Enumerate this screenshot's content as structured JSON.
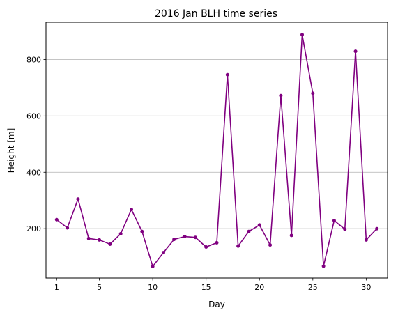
{
  "chart_data": {
    "type": "line",
    "title": "2016 Jan BLH time series",
    "xlabel": "Day",
    "ylabel": "Height [m]",
    "xlim": [
      0,
      32
    ],
    "ylim": [
      25,
      932
    ],
    "xticks": [
      1,
      5,
      10,
      15,
      20,
      25,
      30
    ],
    "yticks": [
      200,
      400,
      600,
      800
    ],
    "grid": "y-major",
    "color": "#800080",
    "x": [
      1,
      2,
      3,
      4,
      5,
      6,
      7,
      8,
      9,
      10,
      11,
      12,
      13,
      14,
      15,
      16,
      17,
      18,
      19,
      20,
      21,
      22,
      23,
      24,
      25,
      26,
      27,
      28,
      29,
      30,
      31
    ],
    "values": [
      232,
      203,
      305,
      165,
      160,
      145,
      182,
      268,
      190,
      66,
      115,
      162,
      172,
      169,
      135,
      150,
      746,
      138,
      190,
      213,
      142,
      672,
      176,
      888,
      680,
      67,
      229,
      198,
      829,
      160,
      200
    ]
  }
}
